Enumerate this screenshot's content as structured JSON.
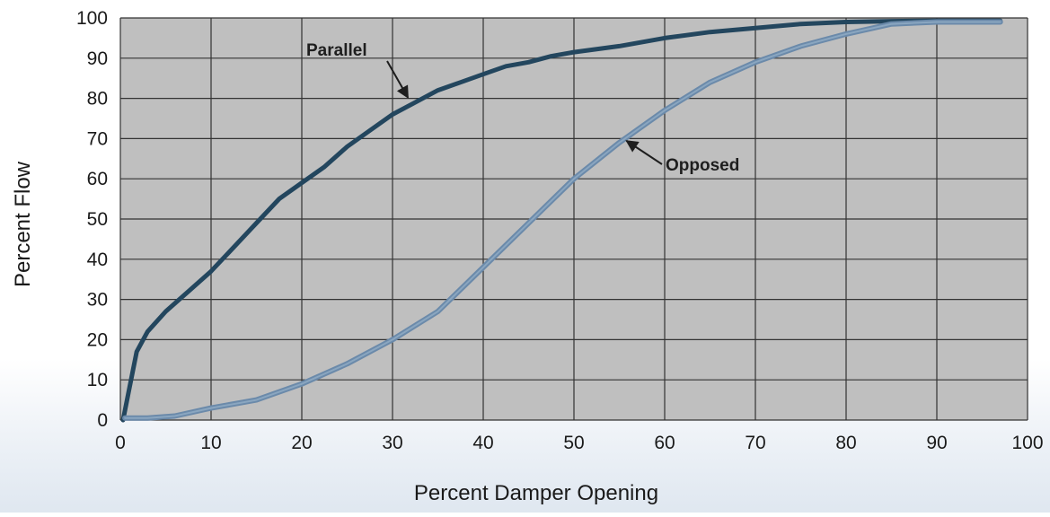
{
  "colors": {
    "plot_background": "#bfbfbf",
    "grid": "#333333",
    "parallel_line": "#23465e",
    "opposed_line": "#6b8aaa",
    "opposed_line_core": "#8aa6c0",
    "label_text": "#1e1e1e"
  },
  "chart_data": {
    "type": "line",
    "title": "",
    "xlabel": "Percent Damper Opening",
    "ylabel": "Percent Flow",
    "xlim": [
      0,
      100
    ],
    "ylim": [
      0,
      100
    ],
    "x_ticks": [
      "0",
      "10",
      "20",
      "30",
      "40",
      "50",
      "60",
      "70",
      "80",
      "90",
      "100"
    ],
    "y_ticks": [
      "0",
      "10",
      "20",
      "30",
      "40",
      "50",
      "60",
      "70",
      "80",
      "90",
      "100"
    ],
    "grid": true,
    "series": [
      {
        "name": "Parallel",
        "x": [
          0.3,
          1,
          1.8,
          3,
          5,
          7.5,
          10,
          12.5,
          15,
          17.5,
          20,
          22.5,
          25,
          27.5,
          30,
          32.5,
          35,
          37.5,
          40,
          42.5,
          45,
          47.5,
          50,
          55,
          60,
          65,
          70,
          75,
          80,
          85,
          90,
          95,
          97
        ],
        "y": [
          0,
          8,
          17,
          22,
          27,
          32,
          37,
          43,
          49,
          55,
          59,
          63,
          68,
          72,
          76,
          79,
          82,
          84,
          86,
          88,
          89,
          90.5,
          91.5,
          93,
          95,
          96.5,
          97.5,
          98.5,
          99,
          99.2,
          99.3,
          99.3,
          99.3
        ]
      },
      {
        "name": "Opposed",
        "x": [
          0.5,
          3,
          6,
          10,
          15,
          20,
          25,
          30,
          35,
          40,
          45,
          50,
          55,
          60,
          65,
          70,
          75,
          80,
          85,
          90,
          95,
          97
        ],
        "y": [
          0.5,
          0.5,
          1,
          3,
          5,
          9,
          14,
          20,
          27,
          38,
          49,
          60,
          69,
          77,
          84,
          89,
          93,
          96,
          98.5,
          99,
          99,
          99
        ]
      }
    ],
    "annotations": [
      {
        "text": "Parallel",
        "points_to_series": "Parallel",
        "at_x": 32
      },
      {
        "text": "Opposed",
        "points_to_series": "Opposed",
        "at_x": 55
      }
    ]
  }
}
